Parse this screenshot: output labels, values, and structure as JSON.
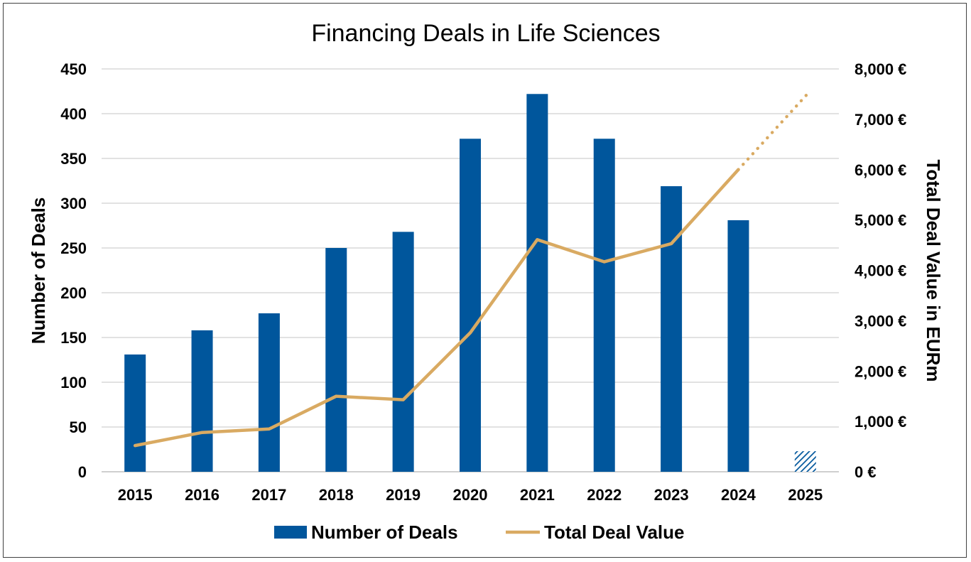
{
  "chart_data": {
    "type": "bar",
    "title": "Financing Deals in Life Sciences",
    "categories": [
      "2015",
      "2016",
      "2017",
      "2018",
      "2019",
      "2020",
      "2021",
      "2022",
      "2023",
      "2024",
      "2025"
    ],
    "series": [
      {
        "name": "Number of Deals",
        "type": "bar",
        "axis": "left",
        "color": "#00569c",
        "values": [
          131,
          158,
          177,
          250,
          268,
          372,
          422,
          372,
          319,
          281,
          23
        ],
        "hatched": [
          false,
          false,
          false,
          false,
          false,
          false,
          false,
          false,
          false,
          false,
          true
        ]
      },
      {
        "name": "Total Deal Value",
        "type": "line",
        "axis": "right",
        "color": "#d9aa62",
        "values": [
          520,
          780,
          850,
          1500,
          1430,
          2760,
          4610,
          4170,
          4530,
          6000,
          null
        ],
        "projection": {
          "from": "2024",
          "to": "2025",
          "values": [
            6000,
            7520
          ],
          "style": "dotted"
        }
      }
    ],
    "ylabel": "Number of Deals",
    "y2label": "Total Deal Value in EURm",
    "ylim": [
      0,
      450
    ],
    "y2lim": [
      0,
      8000
    ],
    "yticks": [
      "0",
      "50",
      "100",
      "150",
      "200",
      "250",
      "300",
      "350",
      "400",
      "450"
    ],
    "y2ticks": [
      "0 €",
      "1,000 €",
      "2,000 €",
      "3,000 €",
      "4,000 €",
      "5,000 €",
      "6,000 €",
      "7,000 €",
      "8,000 €"
    ],
    "grid": true,
    "legend": "bottom"
  }
}
